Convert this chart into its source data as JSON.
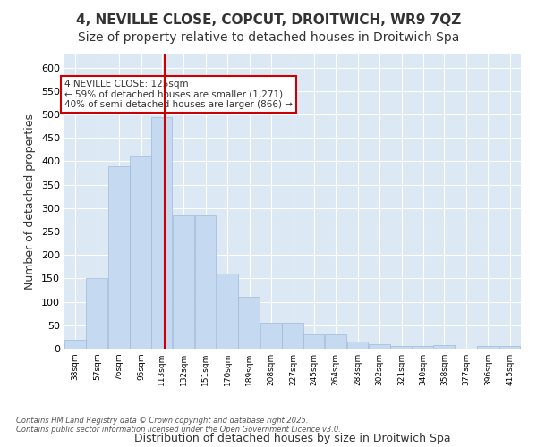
{
  "title1": "4, NEVILLE CLOSE, COPCUT, DROITWICH, WR9 7QZ",
  "title2": "Size of property relative to detached houses in Droitwich Spa",
  "xlabel": "Distribution of detached houses by size in Droitwich Spa",
  "ylabel": "Number of detached properties",
  "footnote": "Contains HM Land Registry data © Crown copyright and database right 2025.\nContains public sector information licensed under the Open Government Licence v3.0.",
  "bin_labels": [
    "38sqm",
    "57sqm",
    "76sqm",
    "95sqm",
    "113sqm",
    "132sqm",
    "151sqm",
    "170sqm",
    "189sqm",
    "208sqm",
    "227sqm",
    "245sqm",
    "264sqm",
    "283sqm",
    "302sqm",
    "321sqm",
    "340sqm",
    "358sqm",
    "377sqm",
    "396sqm",
    "415sqm"
  ],
  "bar_heights": [
    20,
    150,
    390,
    410,
    495,
    285,
    285,
    160,
    110,
    55,
    55,
    30,
    30,
    15,
    10,
    5,
    5,
    8,
    0,
    5,
    5
  ],
  "bin_starts": [
    38,
    57,
    76,
    95,
    113,
    132,
    151,
    170,
    189,
    208,
    227,
    245,
    264,
    283,
    302,
    321,
    340,
    358,
    377,
    396,
    415
  ],
  "bin_width": 19,
  "vline_x": 125,
  "bar_color": "#c5d9f0",
  "bar_edge_color": "#a0b8d8",
  "vline_color": "#cc0000",
  "annotation_text": "4 NEVILLE CLOSE: 125sqm\n← 59% of detached houses are smaller (1,271)\n40% of semi-detached houses are larger (866) →",
  "annotation_box_color": "#ffffff",
  "annotation_box_edge": "#cc0000",
  "plot_bg_color": "#dce9f5",
  "ylim": [
    0,
    630
  ],
  "yticks": [
    0,
    50,
    100,
    150,
    200,
    250,
    300,
    350,
    400,
    450,
    500,
    550,
    600
  ],
  "title1_fontsize": 11,
  "title2_fontsize": 10,
  "xlabel_fontsize": 9,
  "ylabel_fontsize": 9
}
